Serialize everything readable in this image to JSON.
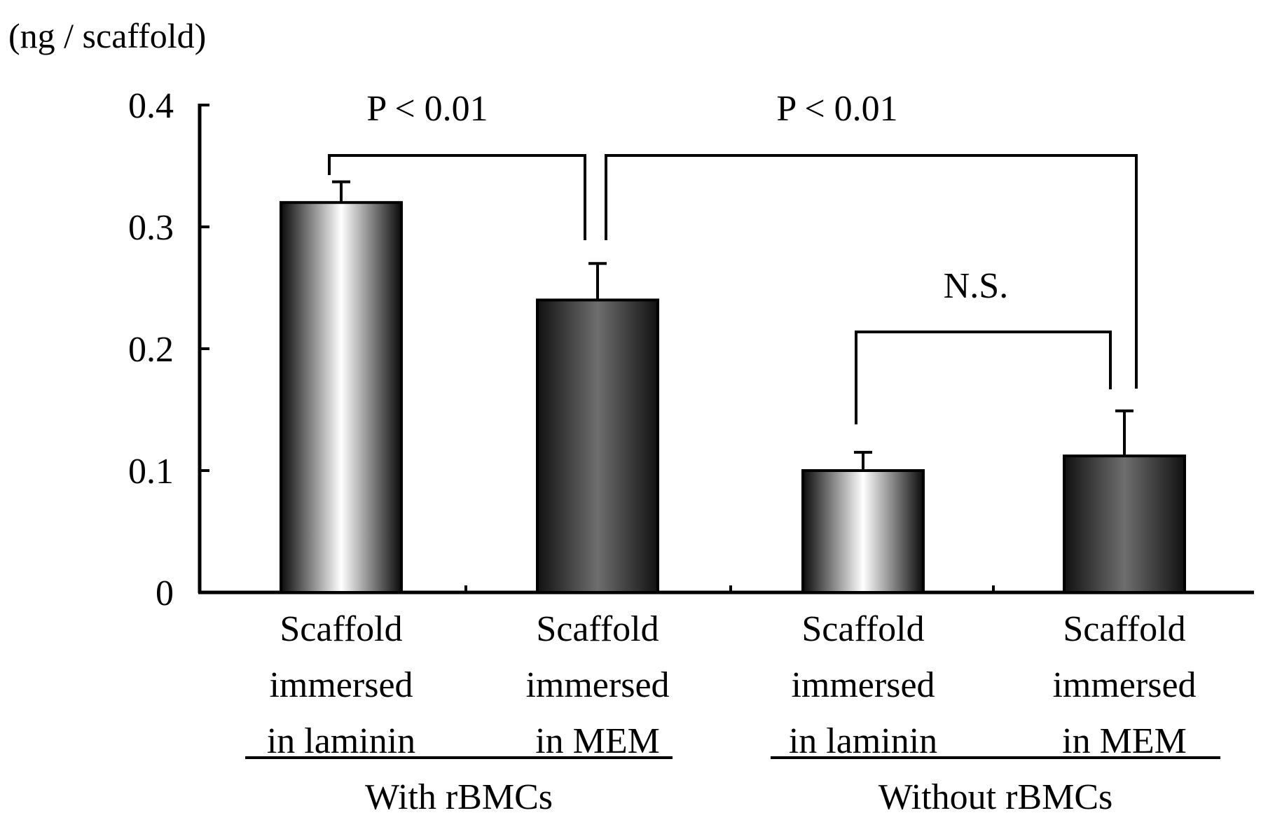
{
  "chart_data": {
    "type": "bar",
    "ylabel": "(ng / scaffold)",
    "ylim": [
      0,
      0.4
    ],
    "yticks": [
      {
        "value": 0,
        "label": "0"
      },
      {
        "value": 0.1,
        "label": "0.1"
      },
      {
        "value": 0.2,
        "label": "0.2"
      },
      {
        "value": 0.3,
        "label": "0.3"
      },
      {
        "value": 0.4,
        "label": "0.4"
      }
    ],
    "categories": [
      {
        "lines": [
          "Scaffold",
          "immersed",
          "in laminin"
        ],
        "value": 0.32,
        "error": 0.017,
        "fill": "laminin"
      },
      {
        "lines": [
          "Scaffold",
          "immersed",
          "in MEM"
        ],
        "value": 0.24,
        "error": 0.03,
        "fill": "mem"
      },
      {
        "lines": [
          "Scaffold",
          "immersed",
          "in laminin"
        ],
        "value": 0.1,
        "error": 0.015,
        "fill": "laminin"
      },
      {
        "lines": [
          "Scaffold",
          "immersed",
          "in MEM"
        ],
        "value": 0.112,
        "error": 0.037,
        "fill": "mem"
      }
    ],
    "groups": [
      {
        "label": "With rBMCs",
        "categories": [
          0,
          1
        ]
      },
      {
        "label": "Without rBMCs",
        "categories": [
          2,
          3
        ]
      }
    ],
    "comparisons": [
      {
        "label": "P < 0.01",
        "between": [
          0,
          1
        ]
      },
      {
        "label": "P < 0.01",
        "between": [
          1,
          3
        ]
      },
      {
        "label": "N.S.",
        "between": [
          2,
          3
        ]
      }
    ],
    "colors": {
      "laminin_edge": "#0a0a0a",
      "laminin_center": "#ffffff",
      "mem_edge": "#111111",
      "mem_center": "#6e6e6e",
      "ink": "#000000"
    }
  }
}
